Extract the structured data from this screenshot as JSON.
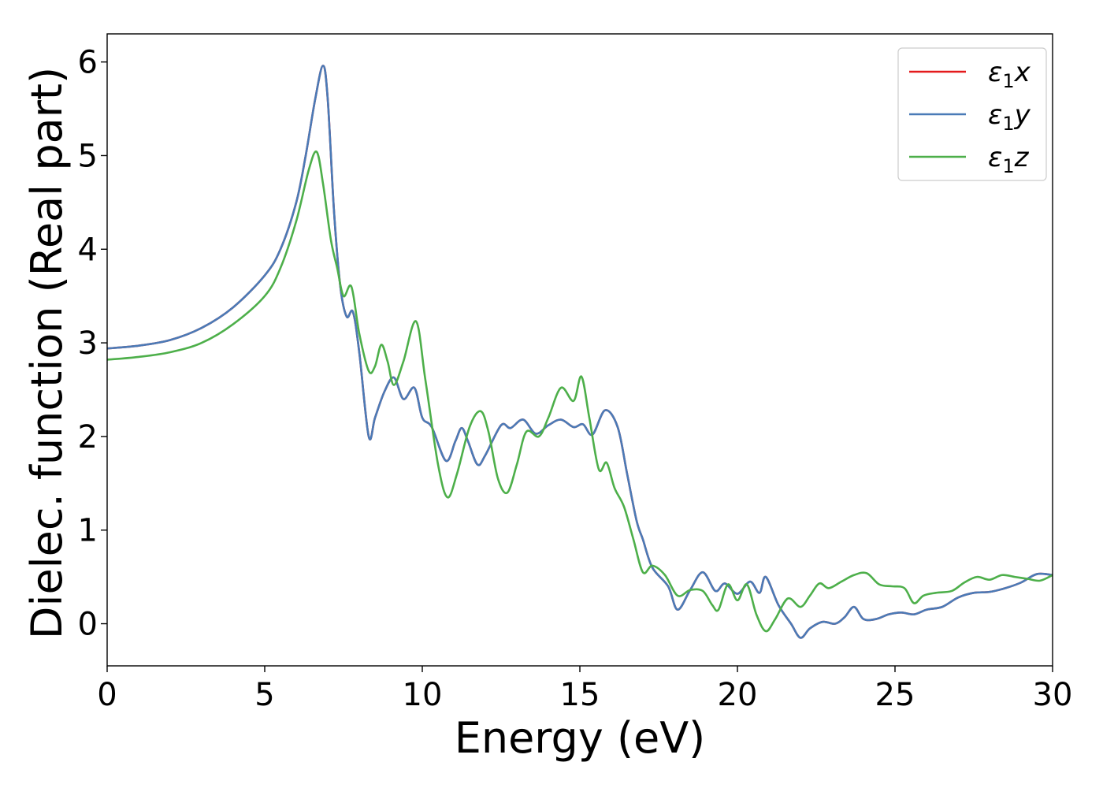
{
  "chart_data": {
    "type": "line",
    "title": "",
    "xlabel": "Energy (eV)",
    "ylabel": "Dielec. function (Real part)",
    "xlim": [
      0,
      30
    ],
    "ylim": [
      -0.45,
      6.3
    ],
    "xticks": [
      0,
      5,
      10,
      15,
      20,
      25,
      30
    ],
    "yticks": [
      0,
      1,
      2,
      3,
      4,
      5,
      6
    ],
    "grid": false,
    "legend_position": "top-right",
    "series": [
      {
        "name": "ε₁x",
        "legend_base": "ε",
        "legend_sub": "1",
        "legend_axis": "x",
        "color": "#e41a1c",
        "points": [
          [
            0,
            2.94
          ],
          [
            1,
            2.97
          ],
          [
            2,
            3.03
          ],
          [
            3,
            3.16
          ],
          [
            4,
            3.38
          ],
          [
            5,
            3.72
          ],
          [
            5.5,
            4.0
          ],
          [
            6,
            4.5
          ],
          [
            6.3,
            5.0
          ],
          [
            6.6,
            5.6
          ],
          [
            6.85,
            5.96
          ],
          [
            7.0,
            5.6
          ],
          [
            7.2,
            4.4
          ],
          [
            7.4,
            3.6
          ],
          [
            7.6,
            3.28
          ],
          [
            7.8,
            3.33
          ],
          [
            8.0,
            2.9
          ],
          [
            8.3,
            2.0
          ],
          [
            8.5,
            2.2
          ],
          [
            8.8,
            2.48
          ],
          [
            9.1,
            2.63
          ],
          [
            9.4,
            2.4
          ],
          [
            9.75,
            2.52
          ],
          [
            10,
            2.2
          ],
          [
            10.3,
            2.1
          ],
          [
            10.75,
            1.74
          ],
          [
            11.05,
            1.95
          ],
          [
            11.25,
            2.09
          ],
          [
            11.45,
            1.95
          ],
          [
            11.75,
            1.7
          ],
          [
            12.0,
            1.8
          ],
          [
            12.5,
            2.12
          ],
          [
            12.8,
            2.09
          ],
          [
            13.2,
            2.18
          ],
          [
            13.6,
            2.03
          ],
          [
            14.0,
            2.12
          ],
          [
            14.4,
            2.18
          ],
          [
            14.8,
            2.1
          ],
          [
            15.1,
            2.13
          ],
          [
            15.4,
            2.02
          ],
          [
            15.8,
            2.28
          ],
          [
            16.2,
            2.1
          ],
          [
            16.5,
            1.6
          ],
          [
            16.8,
            1.1
          ],
          [
            17.0,
            0.9
          ],
          [
            17.3,
            0.6
          ],
          [
            17.8,
            0.4
          ],
          [
            18.1,
            0.15
          ],
          [
            18.5,
            0.36
          ],
          [
            18.9,
            0.55
          ],
          [
            19.3,
            0.35
          ],
          [
            19.6,
            0.43
          ],
          [
            20.0,
            0.32
          ],
          [
            20.4,
            0.45
          ],
          [
            20.7,
            0.33
          ],
          [
            20.9,
            0.5
          ],
          [
            21.3,
            0.2
          ],
          [
            21.7,
            0.0
          ],
          [
            22.0,
            -0.15
          ],
          [
            22.3,
            -0.05
          ],
          [
            22.7,
            0.02
          ],
          [
            23.1,
            0.0
          ],
          [
            23.4,
            0.07
          ],
          [
            23.7,
            0.18
          ],
          [
            24.0,
            0.05
          ],
          [
            24.4,
            0.05
          ],
          [
            24.8,
            0.1
          ],
          [
            25.2,
            0.12
          ],
          [
            25.6,
            0.1
          ],
          [
            26.0,
            0.15
          ],
          [
            26.5,
            0.18
          ],
          [
            27.0,
            0.28
          ],
          [
            27.5,
            0.33
          ],
          [
            28.0,
            0.34
          ],
          [
            28.5,
            0.38
          ],
          [
            29.0,
            0.44
          ],
          [
            29.5,
            0.53
          ],
          [
            30,
            0.52
          ]
        ]
      },
      {
        "name": "ε₁y",
        "legend_base": "ε",
        "legend_sub": "1",
        "legend_axis": "y",
        "color": "#4a7bb7",
        "points": [
          [
            0,
            2.94
          ],
          [
            1,
            2.97
          ],
          [
            2,
            3.03
          ],
          [
            3,
            3.16
          ],
          [
            4,
            3.38
          ],
          [
            5,
            3.72
          ],
          [
            5.5,
            4.0
          ],
          [
            6,
            4.5
          ],
          [
            6.3,
            5.0
          ],
          [
            6.6,
            5.6
          ],
          [
            6.85,
            5.96
          ],
          [
            7.0,
            5.6
          ],
          [
            7.2,
            4.4
          ],
          [
            7.4,
            3.6
          ],
          [
            7.6,
            3.28
          ],
          [
            7.8,
            3.33
          ],
          [
            8.0,
            2.9
          ],
          [
            8.3,
            2.0
          ],
          [
            8.5,
            2.2
          ],
          [
            8.8,
            2.48
          ],
          [
            9.1,
            2.63
          ],
          [
            9.4,
            2.4
          ],
          [
            9.75,
            2.52
          ],
          [
            10,
            2.2
          ],
          [
            10.3,
            2.1
          ],
          [
            10.75,
            1.74
          ],
          [
            11.05,
            1.95
          ],
          [
            11.25,
            2.09
          ],
          [
            11.45,
            1.95
          ],
          [
            11.75,
            1.7
          ],
          [
            12.0,
            1.8
          ],
          [
            12.5,
            2.12
          ],
          [
            12.8,
            2.09
          ],
          [
            13.2,
            2.18
          ],
          [
            13.6,
            2.03
          ],
          [
            14.0,
            2.12
          ],
          [
            14.4,
            2.18
          ],
          [
            14.8,
            2.1
          ],
          [
            15.1,
            2.13
          ],
          [
            15.4,
            2.02
          ],
          [
            15.8,
            2.28
          ],
          [
            16.2,
            2.1
          ],
          [
            16.5,
            1.6
          ],
          [
            16.8,
            1.1
          ],
          [
            17.0,
            0.9
          ],
          [
            17.3,
            0.6
          ],
          [
            17.8,
            0.4
          ],
          [
            18.1,
            0.15
          ],
          [
            18.5,
            0.36
          ],
          [
            18.9,
            0.55
          ],
          [
            19.3,
            0.35
          ],
          [
            19.6,
            0.43
          ],
          [
            20.0,
            0.32
          ],
          [
            20.4,
            0.45
          ],
          [
            20.7,
            0.33
          ],
          [
            20.9,
            0.5
          ],
          [
            21.3,
            0.2
          ],
          [
            21.7,
            0.0
          ],
          [
            22.0,
            -0.15
          ],
          [
            22.3,
            -0.05
          ],
          [
            22.7,
            0.02
          ],
          [
            23.1,
            0.0
          ],
          [
            23.4,
            0.07
          ],
          [
            23.7,
            0.18
          ],
          [
            24.0,
            0.05
          ],
          [
            24.4,
            0.05
          ],
          [
            24.8,
            0.1
          ],
          [
            25.2,
            0.12
          ],
          [
            25.6,
            0.1
          ],
          [
            26.0,
            0.15
          ],
          [
            26.5,
            0.18
          ],
          [
            27.0,
            0.28
          ],
          [
            27.5,
            0.33
          ],
          [
            28.0,
            0.34
          ],
          [
            28.5,
            0.38
          ],
          [
            29.0,
            0.44
          ],
          [
            29.5,
            0.53
          ],
          [
            30,
            0.52
          ]
        ]
      },
      {
        "name": "ε₁z",
        "legend_base": "ε",
        "legend_sub": "1",
        "legend_axis": "z",
        "color": "#4daf4a",
        "points": [
          [
            0,
            2.82
          ],
          [
            1,
            2.85
          ],
          [
            2,
            2.9
          ],
          [
            3,
            3.0
          ],
          [
            4,
            3.2
          ],
          [
            5,
            3.5
          ],
          [
            5.5,
            3.8
          ],
          [
            6,
            4.3
          ],
          [
            6.4,
            4.85
          ],
          [
            6.65,
            5.04
          ],
          [
            6.85,
            4.7
          ],
          [
            7.1,
            4.1
          ],
          [
            7.3,
            3.8
          ],
          [
            7.5,
            3.5
          ],
          [
            7.75,
            3.6
          ],
          [
            8.0,
            3.1
          ],
          [
            8.3,
            2.7
          ],
          [
            8.5,
            2.75
          ],
          [
            8.7,
            2.98
          ],
          [
            8.9,
            2.8
          ],
          [
            9.1,
            2.55
          ],
          [
            9.4,
            2.8
          ],
          [
            9.8,
            3.23
          ],
          [
            10.1,
            2.6
          ],
          [
            10.5,
            1.7
          ],
          [
            10.8,
            1.35
          ],
          [
            11.1,
            1.6
          ],
          [
            11.5,
            2.1
          ],
          [
            11.85,
            2.27
          ],
          [
            12.1,
            2.05
          ],
          [
            12.4,
            1.55
          ],
          [
            12.7,
            1.4
          ],
          [
            13.0,
            1.7
          ],
          [
            13.3,
            2.05
          ],
          [
            13.7,
            2.0
          ],
          [
            14.0,
            2.2
          ],
          [
            14.4,
            2.52
          ],
          [
            14.8,
            2.38
          ],
          [
            15.05,
            2.64
          ],
          [
            15.3,
            2.2
          ],
          [
            15.6,
            1.65
          ],
          [
            15.85,
            1.72
          ],
          [
            16.1,
            1.45
          ],
          [
            16.4,
            1.25
          ],
          [
            16.7,
            0.9
          ],
          [
            17.0,
            0.55
          ],
          [
            17.3,
            0.62
          ],
          [
            17.7,
            0.52
          ],
          [
            18.1,
            0.3
          ],
          [
            18.5,
            0.36
          ],
          [
            18.9,
            0.35
          ],
          [
            19.2,
            0.2
          ],
          [
            19.4,
            0.15
          ],
          [
            19.7,
            0.42
          ],
          [
            20.0,
            0.25
          ],
          [
            20.3,
            0.42
          ],
          [
            20.6,
            0.1
          ],
          [
            20.9,
            -0.08
          ],
          [
            21.2,
            0.05
          ],
          [
            21.6,
            0.27
          ],
          [
            22.0,
            0.18
          ],
          [
            22.3,
            0.3
          ],
          [
            22.6,
            0.43
          ],
          [
            22.9,
            0.38
          ],
          [
            23.3,
            0.45
          ],
          [
            23.7,
            0.52
          ],
          [
            24.1,
            0.54
          ],
          [
            24.5,
            0.42
          ],
          [
            24.9,
            0.4
          ],
          [
            25.3,
            0.38
          ],
          [
            25.6,
            0.22
          ],
          [
            25.9,
            0.3
          ],
          [
            26.3,
            0.33
          ],
          [
            26.8,
            0.35
          ],
          [
            27.2,
            0.44
          ],
          [
            27.6,
            0.5
          ],
          [
            28.0,
            0.47
          ],
          [
            28.4,
            0.52
          ],
          [
            28.8,
            0.5
          ],
          [
            29.2,
            0.48
          ],
          [
            29.6,
            0.46
          ],
          [
            30,
            0.52
          ]
        ]
      }
    ]
  }
}
